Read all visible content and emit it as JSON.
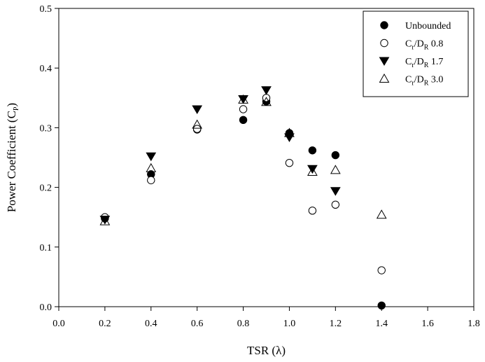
{
  "chart_data": {
    "type": "scatter",
    "title": "",
    "xlabel": "TSR (λ)",
    "ylabel": {
      "main": "Power Coefficient (C",
      "sub": "P",
      "close": ")"
    },
    "xlim": [
      0.0,
      1.8
    ],
    "ylim": [
      0.0,
      0.5
    ],
    "xticks": [
      "0.0",
      "0.2",
      "0.4",
      "0.6",
      "0.8",
      "1.0",
      "1.2",
      "1.4",
      "1.6",
      "1.8"
    ],
    "yticks": [
      "0.0",
      "0.1",
      "0.2",
      "0.3",
      "0.4",
      "0.5"
    ],
    "grid": false,
    "legend_position": "top-right",
    "series": [
      {
        "name": "Unbounded",
        "legend": {
          "parts": [
            {
              "t": "Unbounded"
            }
          ]
        },
        "marker": "filled-circle",
        "x": [
          0.2,
          0.4,
          0.6,
          0.8,
          0.9,
          1.0,
          1.1,
          1.2,
          1.4
        ],
        "y": [
          0.148,
          0.222,
          0.297,
          0.313,
          0.344,
          0.291,
          0.262,
          0.254,
          0.002
        ]
      },
      {
        "name": "Cr/DR 0.8",
        "legend": {
          "parts": [
            {
              "t": "C"
            },
            {
              "t": "r",
              "sub": true
            },
            {
              "t": "/D"
            },
            {
              "t": "R",
              "sub": true
            },
            {
              "t": " 0.8"
            }
          ]
        },
        "marker": "open-circle",
        "x": [
          0.2,
          0.4,
          0.6,
          0.8,
          0.9,
          1.0,
          1.1,
          1.2,
          1.4
        ],
        "y": [
          0.15,
          0.212,
          0.298,
          0.331,
          0.35,
          0.241,
          0.161,
          0.171,
          0.061
        ]
      },
      {
        "name": "Cr/DR 1.7",
        "legend": {
          "parts": [
            {
              "t": "C"
            },
            {
              "t": "r",
              "sub": true
            },
            {
              "t": "/D"
            },
            {
              "t": "R",
              "sub": true
            },
            {
              "t": " 1.7"
            }
          ]
        },
        "marker": "filled-triangle-down",
        "x": [
          0.2,
          0.4,
          0.6,
          0.8,
          0.9,
          1.0,
          1.1,
          1.2
        ],
        "y": [
          0.146,
          0.252,
          0.331,
          0.348,
          0.363,
          0.284,
          0.231,
          0.194
        ]
      },
      {
        "name": "Cr/DR 3.0",
        "legend": {
          "parts": [
            {
              "t": "C"
            },
            {
              "t": "r",
              "sub": true
            },
            {
              "t": "/D"
            },
            {
              "t": "R",
              "sub": true
            },
            {
              "t": " 3.0"
            }
          ]
        },
        "marker": "open-triangle-up",
        "x": [
          0.2,
          0.4,
          0.6,
          0.8,
          0.9,
          1.0,
          1.1,
          1.2,
          1.4
        ],
        "y": [
          0.143,
          0.232,
          0.305,
          0.347,
          0.343,
          0.291,
          0.226,
          0.229,
          0.154
        ]
      }
    ]
  }
}
